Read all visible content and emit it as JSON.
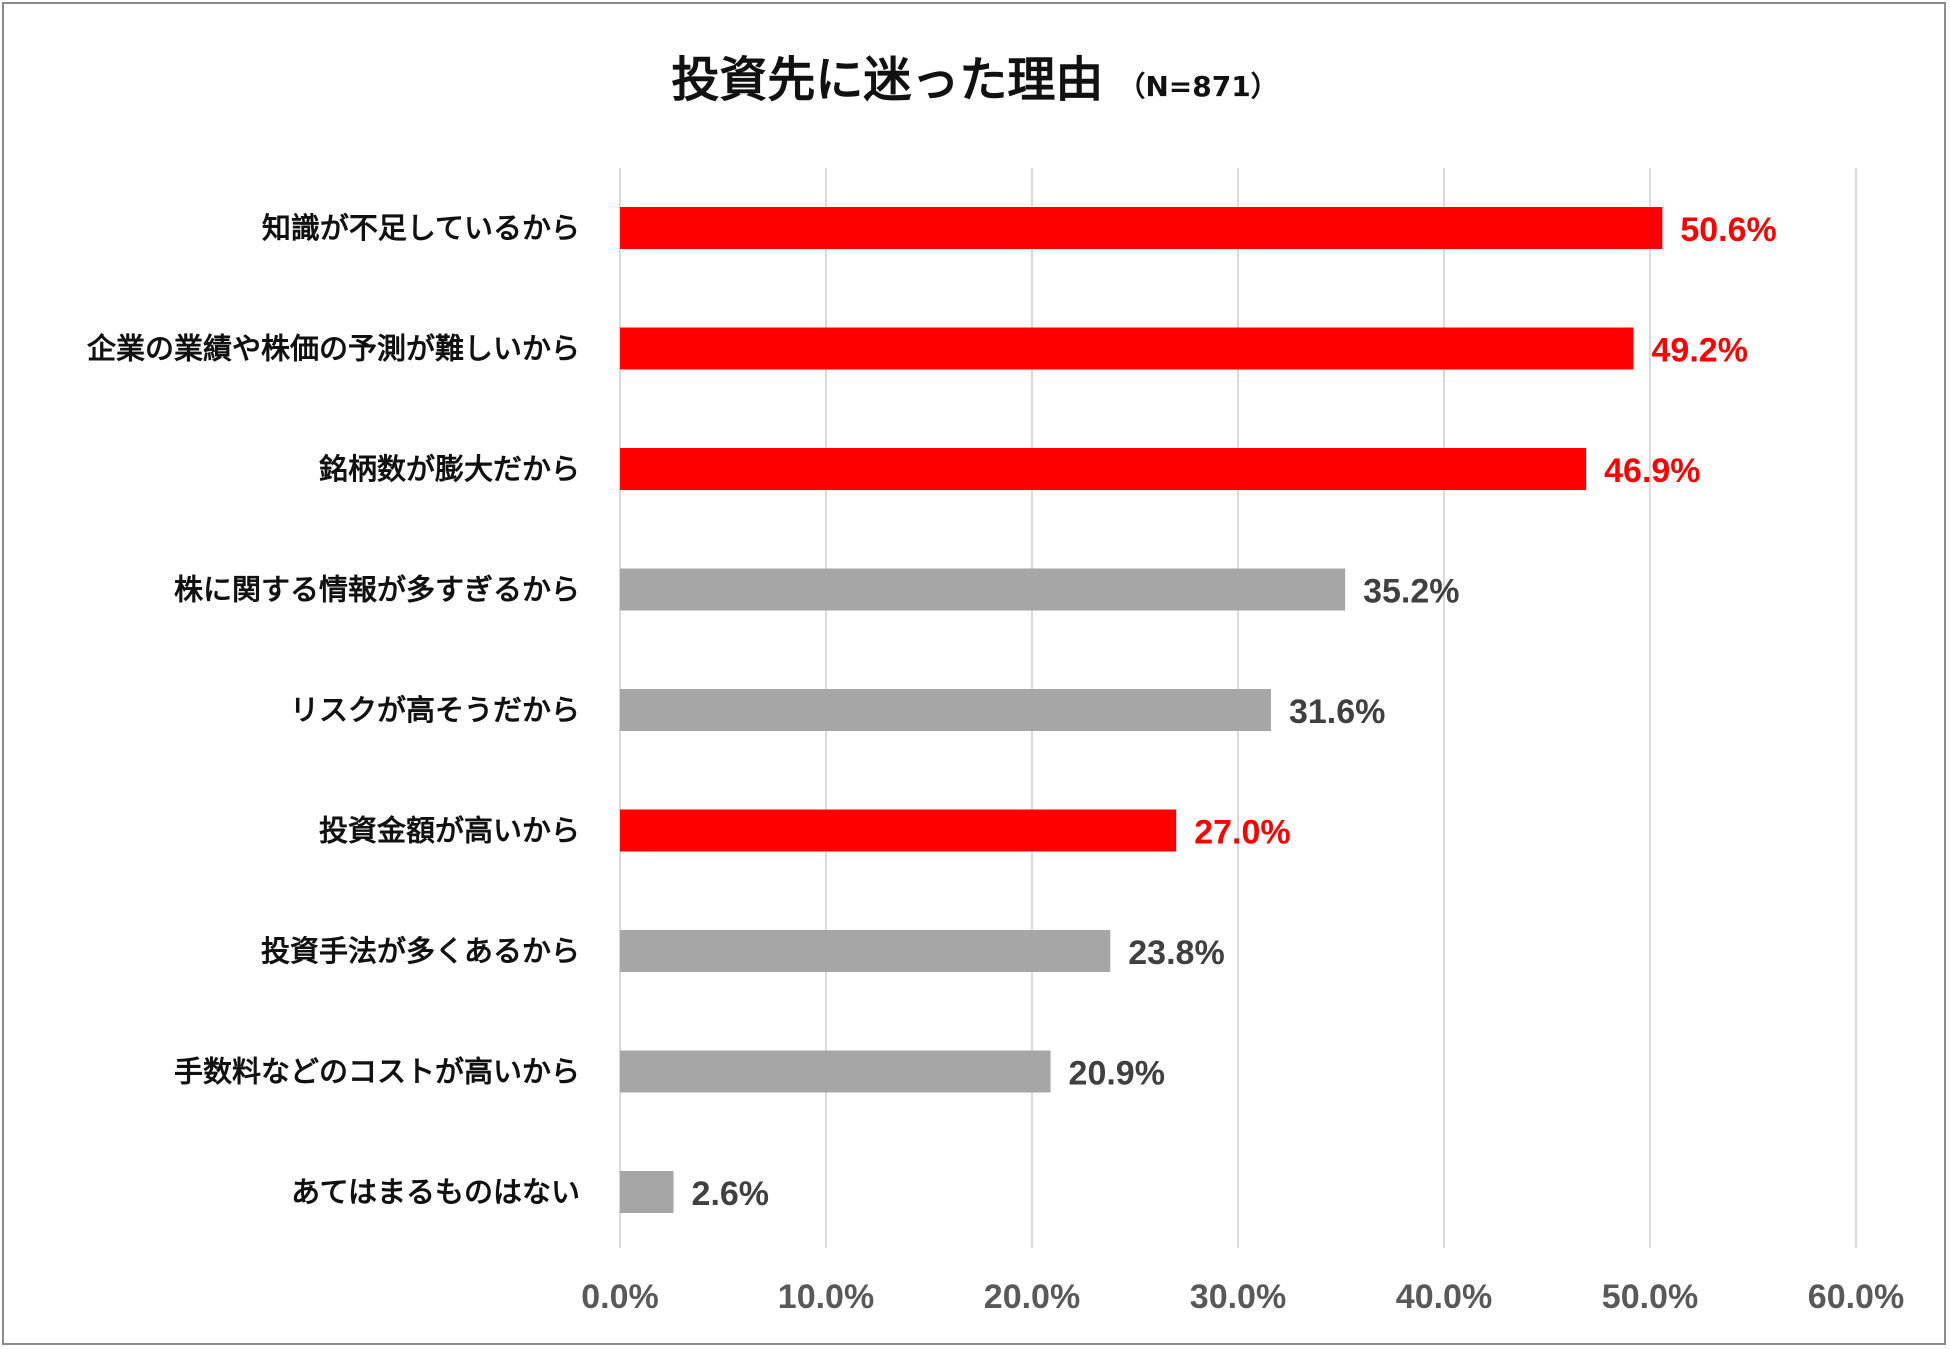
{
  "chart_data": {
    "type": "bar",
    "orientation": "horizontal",
    "title": "投資先に迷った理由",
    "subtitle": "（N=871）",
    "categories": [
      "知識が不足しているから",
      "企業の業績や株価の予測が難しいから",
      "銘柄数が膨大だから",
      "株に関する情報が多すぎるから",
      "リスクが高そうだから",
      "投資金額が高いから",
      "投資手法が多くあるから",
      "手数料などのコストが高いから",
      "あてはまるものはない"
    ],
    "values": [
      50.6,
      49.2,
      46.9,
      35.2,
      31.6,
      27.0,
      23.8,
      20.9,
      2.6
    ],
    "value_labels": [
      "50.6%",
      "49.2%",
      "46.9%",
      "35.2%",
      "31.6%",
      "27.0%",
      "23.8%",
      "20.9%",
      "2.6%"
    ],
    "highlighted": [
      true,
      true,
      true,
      false,
      false,
      true,
      false,
      false,
      false
    ],
    "xlim": [
      0,
      60
    ],
    "x_ticks": [
      0,
      10,
      20,
      30,
      40,
      50,
      60
    ],
    "x_tick_labels": [
      "0.0%",
      "10.0%",
      "20.0%",
      "30.0%",
      "40.0%",
      "50.0%",
      "60.0%"
    ],
    "xlabel": "",
    "ylabel": "",
    "grid": true,
    "legend": "none",
    "colors": {
      "highlight": "#ff0000",
      "normal": "#a6a6a6",
      "highlight_label": "#ff0000",
      "normal_label": "#404040",
      "gridline": "#d9d9d9"
    }
  }
}
